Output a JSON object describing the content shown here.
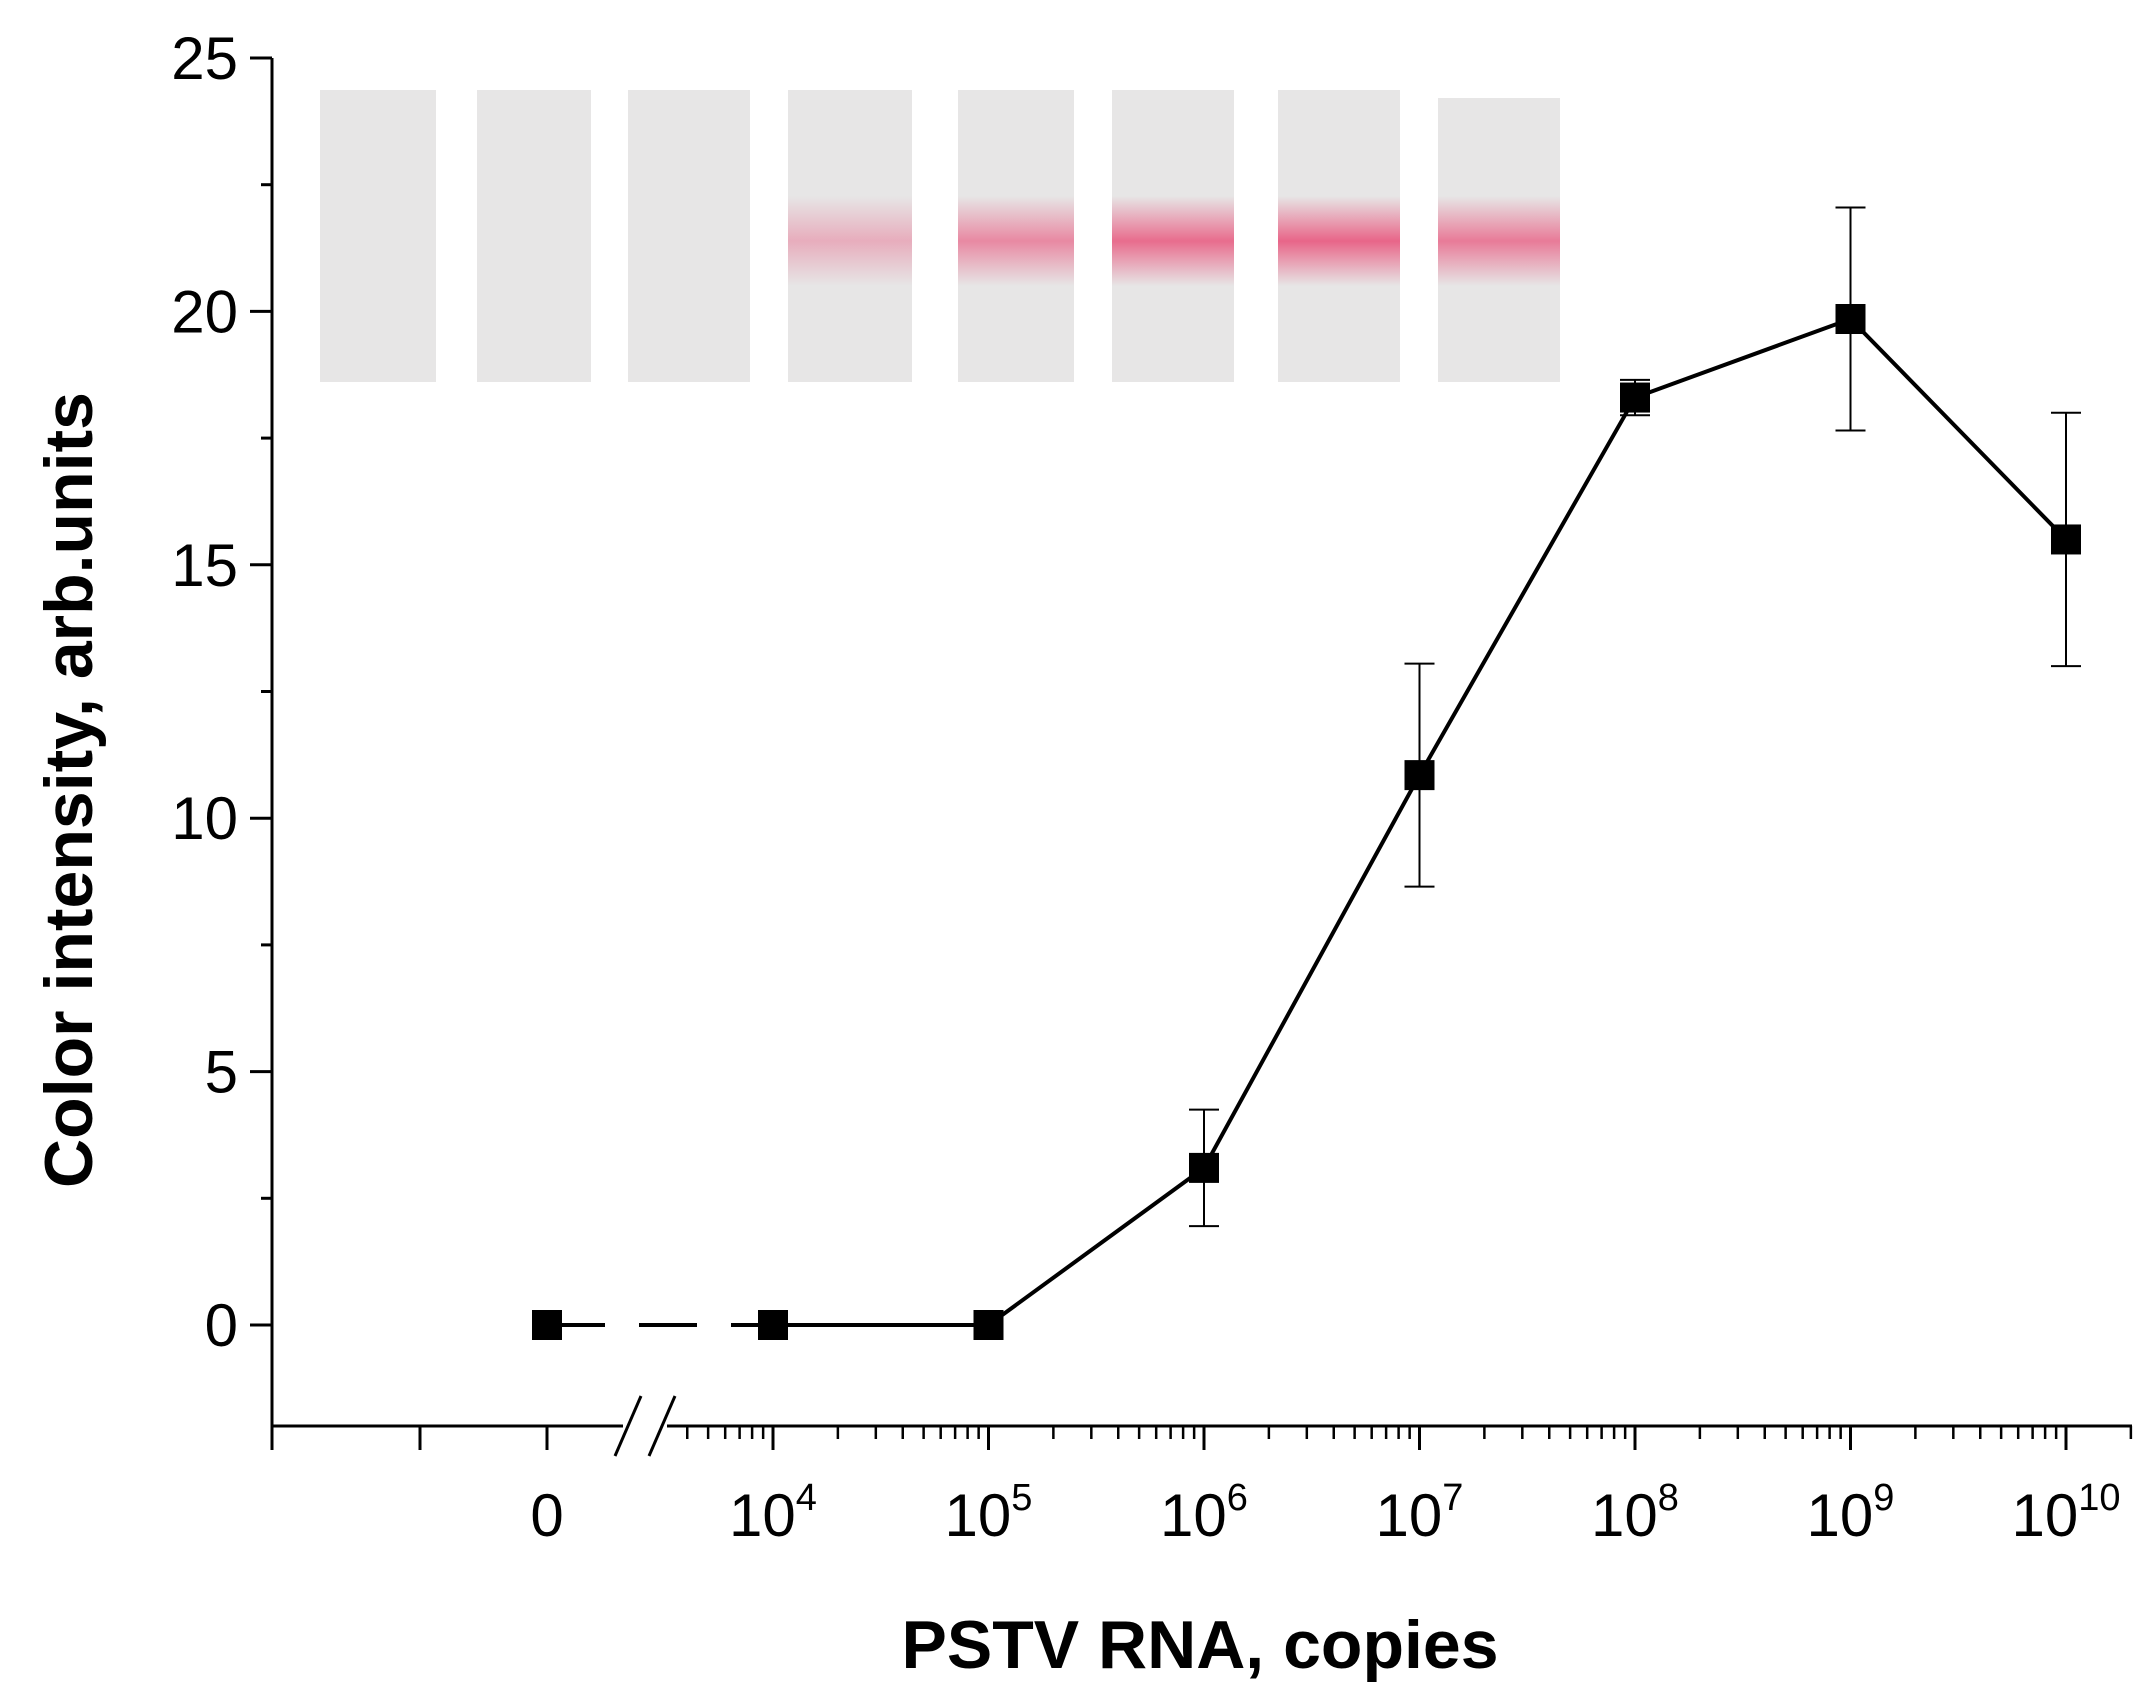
{
  "chart_data": {
    "type": "line",
    "title": "",
    "xlabel": "PSTV RNA, copies",
    "ylabel": "Color intensity, arb.units",
    "x_scale": "log10 with axis break between 0 and 10^4",
    "xlim_log10": [
      1.65,
      10.3
    ],
    "ylim": [
      -2,
      25
    ],
    "y_ticks": [
      0,
      5,
      10,
      15,
      20,
      25
    ],
    "x_ticks": [
      {
        "base": "0",
        "exp": "",
        "log10": null
      },
      {
        "base": "10",
        "exp": "4",
        "log10": 4
      },
      {
        "base": "10",
        "exp": "5",
        "log10": 5
      },
      {
        "base": "10",
        "exp": "6",
        "log10": 6
      },
      {
        "base": "10",
        "exp": "7",
        "log10": 7
      },
      {
        "base": "10",
        "exp": "8",
        "log10": 8
      },
      {
        "base": "10",
        "exp": "9",
        "log10": 9
      },
      {
        "base": "10",
        "exp": "10",
        "log10": 10
      }
    ],
    "grid": false,
    "legend": "none",
    "series": [
      {
        "name": "PSTV RNA",
        "points": [
          {
            "x": "0",
            "log10": null,
            "y": 0,
            "err": 0
          },
          {
            "x": "10^4",
            "log10": 4,
            "y": 0,
            "err": 0
          },
          {
            "x": "10^5",
            "log10": 5,
            "y": 0,
            "err": 0
          },
          {
            "x": "10^6",
            "log10": 6,
            "y": 3.1,
            "err": 1.15
          },
          {
            "x": "10^7",
            "log10": 7,
            "y": 10.85,
            "err": 2.2
          },
          {
            "x": "10^8",
            "log10": 8,
            "y": 18.3,
            "err": 0.35
          },
          {
            "x": "10^9",
            "log10": 9,
            "y": 19.85,
            "err": 2.2
          },
          {
            "x": "10^10",
            "log10": 10,
            "y": 15.5,
            "err": 2.5
          }
        ]
      }
    ],
    "inset": {
      "description": "test strip photographs, one per concentration",
      "strips": [
        {
          "concentration": "0",
          "line_intensity": 0
        },
        {
          "concentration": "10^4",
          "line_intensity": 0
        },
        {
          "concentration": "10^5",
          "line_intensity": 0
        },
        {
          "concentration": "10^6",
          "line_intensity": 0.4
        },
        {
          "concentration": "10^7",
          "line_intensity": 0.65
        },
        {
          "concentration": "10^8",
          "line_intensity": 0.85
        },
        {
          "concentration": "10^9",
          "line_intensity": 0.9
        },
        {
          "concentration": "10^10",
          "line_intensity": 0.75
        }
      ],
      "strip_color": "#e7e6e6",
      "line_color": "#e8577e"
    },
    "colors": {
      "line": "#000000",
      "marker": "#000000",
      "axis": "#000000"
    }
  }
}
